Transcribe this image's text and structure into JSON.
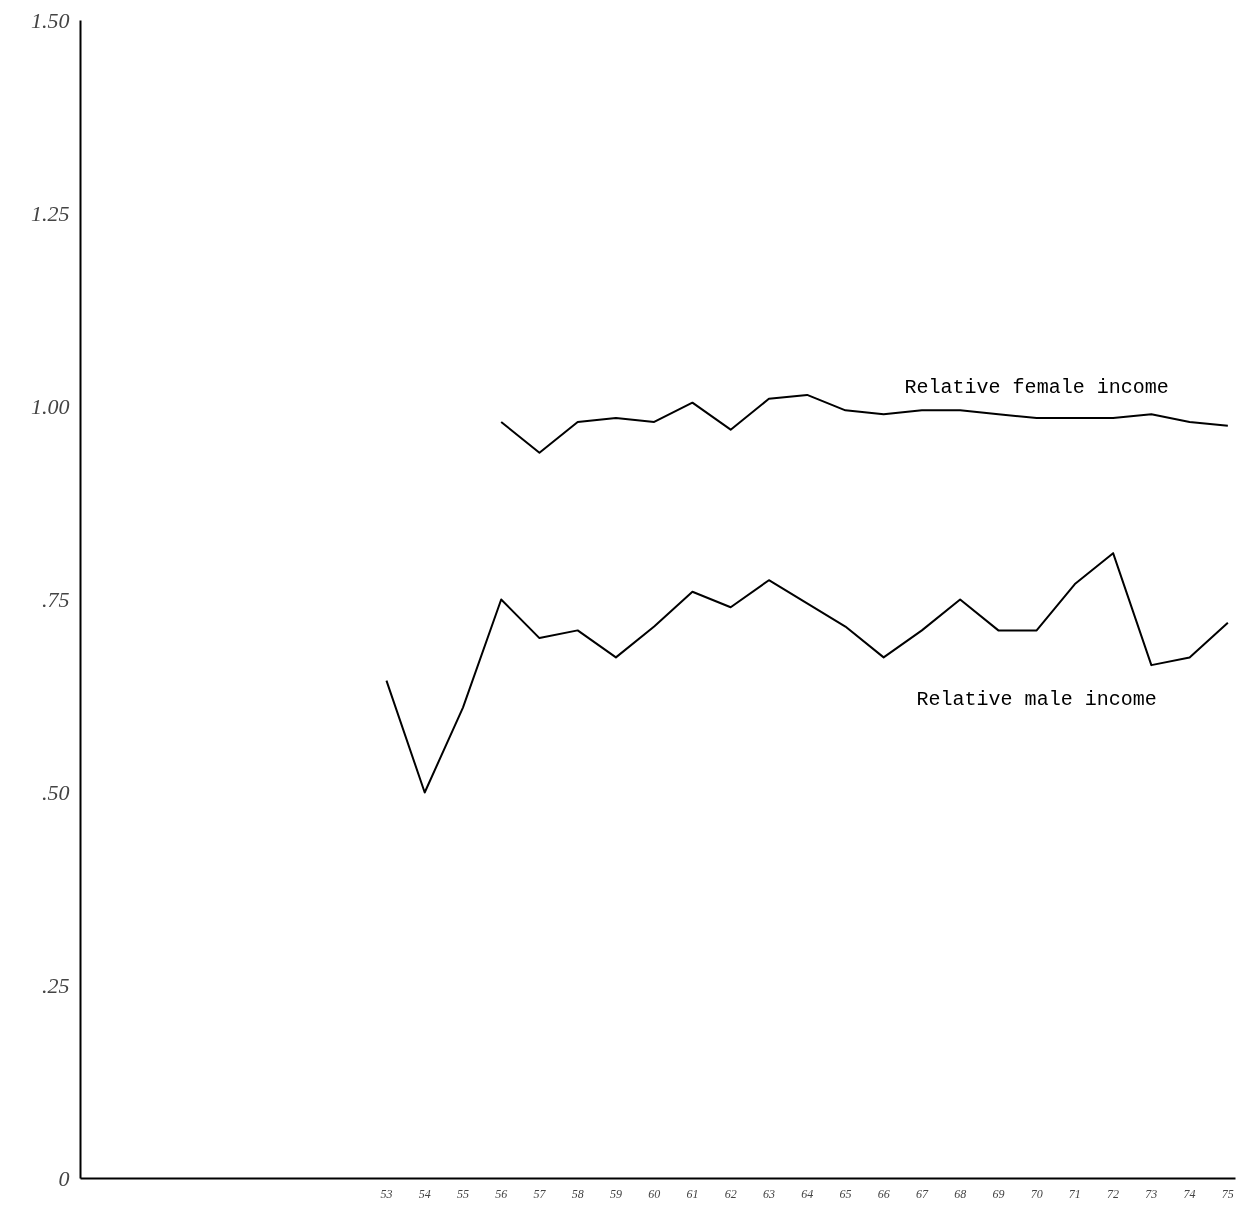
{
  "chart_data": {
    "type": "line",
    "x": [
      53,
      54,
      55,
      56,
      57,
      58,
      59,
      60,
      61,
      62,
      63,
      64,
      65,
      66,
      67,
      68,
      69,
      70,
      71,
      72,
      73,
      74,
      75
    ],
    "series": [
      {
        "name": "Relative female income",
        "color": "#000000",
        "x": [
          56,
          57,
          58,
          59,
          60,
          61,
          62,
          63,
          64,
          65,
          66,
          67,
          68,
          69,
          70,
          71,
          72,
          73,
          74,
          75
        ],
        "values": [
          0.98,
          0.94,
          0.98,
          0.985,
          0.98,
          1.005,
          0.97,
          1.01,
          1.015,
          0.995,
          0.99,
          0.995,
          0.995,
          0.99,
          0.985,
          0.985,
          0.985,
          0.99,
          0.98,
          0.975
        ]
      },
      {
        "name": "Relative male income",
        "color": "#000000",
        "values": [
          0.645,
          0.5,
          0.61,
          0.75,
          0.7,
          0.71,
          0.675,
          0.715,
          0.76,
          0.74,
          0.775,
          0.745,
          0.715,
          0.675,
          0.71,
          0.75,
          0.71,
          0.71,
          0.77,
          0.81,
          0.665,
          0.675,
          0.72
        ]
      }
    ],
    "xlim": [
      45,
      75.2
    ],
    "xticks": [
      {
        "value": 53,
        "label": "53"
      },
      {
        "value": 54,
        "label": "54"
      },
      {
        "value": 55,
        "label": "55"
      },
      {
        "value": 56,
        "label": "56"
      },
      {
        "value": 57,
        "label": "57"
      },
      {
        "value": 58,
        "label": "58"
      },
      {
        "value": 59,
        "label": "59"
      },
      {
        "value": 60,
        "label": "60"
      },
      {
        "value": 61,
        "label": "61"
      },
      {
        "value": 62,
        "label": "62"
      },
      {
        "value": 63,
        "label": "63"
      },
      {
        "value": 64,
        "label": "64"
      },
      {
        "value": 65,
        "label": "65"
      },
      {
        "value": 66,
        "label": "66"
      },
      {
        "value": 67,
        "label": "67"
      },
      {
        "value": 68,
        "label": "68"
      },
      {
        "value": 69,
        "label": "69"
      },
      {
        "value": 70,
        "label": "70"
      },
      {
        "value": 71,
        "label": "71"
      },
      {
        "value": 72,
        "label": "72"
      },
      {
        "value": 73,
        "label": "73"
      },
      {
        "value": 74,
        "label": "74"
      },
      {
        "value": 75,
        "label": "75"
      }
    ],
    "ylim": [
      0,
      1.5
    ],
    "yticks": [
      {
        "value": 0,
        "label": "0"
      },
      {
        "value": 0.25,
        "label": ".25"
      },
      {
        "value": 0.5,
        "label": ".50"
      },
      {
        "value": 0.75,
        "label": ".75"
      },
      {
        "value": 1.0,
        "label": "1.00"
      },
      {
        "value": 1.25,
        "label": "1.25"
      },
      {
        "value": 1.5,
        "label": "1.50"
      }
    ],
    "grid": false,
    "marker": "none",
    "line_style": "solid"
  }
}
